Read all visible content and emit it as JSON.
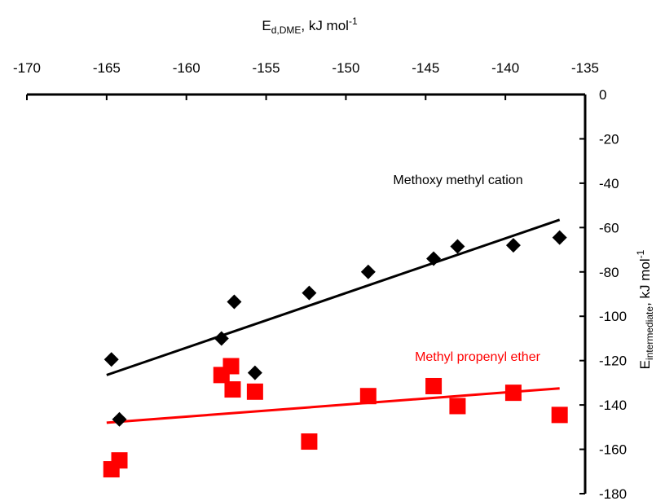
{
  "chart_data": {
    "type": "scatter",
    "xlabel": {
      "main": "E",
      "sub": "d,DME",
      "rest": ", kJ mol",
      "sup": "-1"
    },
    "ylabel": {
      "main": "E",
      "sub": "intermediate",
      "rest": ", kJ mol",
      "sup": "-1"
    },
    "xlim": [
      -170,
      -135
    ],
    "ylim": [
      -180,
      0
    ],
    "x_ticks": [
      -170,
      -165,
      -160,
      -155,
      -150,
      -145,
      -140,
      -135
    ],
    "y_ticks": [
      0,
      -20,
      -40,
      -60,
      -80,
      -100,
      -120,
      -140,
      -160,
      -180
    ],
    "x_axis_position": "top",
    "y_axis_position": "right",
    "grid": false,
    "series": [
      {
        "name": "Methoxy methyl cation",
        "marker": "diamond",
        "color": "#000000",
        "x": [
          -164.7,
          -164.2,
          -157.8,
          -157.0,
          -155.7,
          -152.3,
          -148.6,
          -144.5,
          -143.0,
          -139.5,
          -136.6
        ],
        "y": [
          -119.5,
          -146.5,
          -110.0,
          -93.5,
          -125.5,
          -89.5,
          -80.0,
          -74.0,
          -68.5,
          -68.0,
          -64.5
        ],
        "trendline": {
          "x1": -165.0,
          "y1": -126.5,
          "x2": -136.6,
          "y2": -56.5
        }
      },
      {
        "name": "Methyl propenyl ether",
        "marker": "square",
        "color": "#ff0000",
        "x": [
          -164.7,
          -164.2,
          -157.8,
          -157.2,
          -157.1,
          -155.7,
          -152.3,
          -148.6,
          -144.5,
          -143.0,
          -139.5,
          -136.6
        ],
        "y": [
          -169.0,
          -165.0,
          -126.5,
          -122.5,
          -133.0,
          -134.0,
          -156.5,
          -136.0,
          -131.5,
          -140.5,
          -134.5,
          -144.5
        ],
        "trendline": {
          "x1": -165.0,
          "y1": -148.0,
          "x2": -136.6,
          "y2": -132.5
        }
      }
    ]
  }
}
